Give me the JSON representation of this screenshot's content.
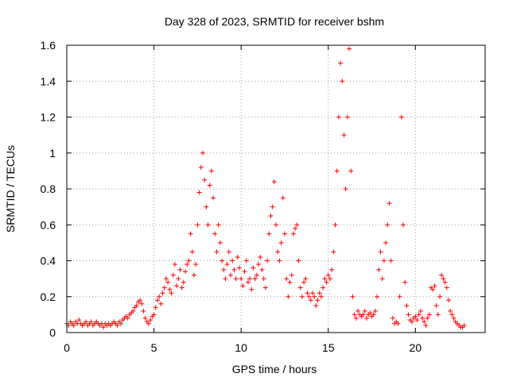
{
  "chart_data": {
    "type": "scatter",
    "title": "Day 328 of 2023, SRMTID for receiver bshm",
    "xlabel": "GPS time / hours",
    "ylabel": "SRMTID / TECUs",
    "xlim": [
      0,
      24
    ],
    "ylim": [
      0,
      1.6
    ],
    "grid": true,
    "marker": "plus",
    "color": "#ff0000",
    "x_ticks": [
      0,
      5,
      10,
      15,
      20
    ],
    "x_tick_labels": [
      "0",
      "5",
      "10",
      "15",
      "20"
    ],
    "y_ticks": [
      0,
      0.2,
      0.4,
      0.6,
      0.8,
      1.0,
      1.2,
      1.4,
      1.6
    ],
    "y_tick_labels": [
      "0",
      "0.2",
      "0.4",
      "0.6",
      "0.8",
      "1",
      "1.2",
      "1.4",
      "1.6"
    ],
    "series": [
      {
        "name": "SRMTID",
        "points": [
          [
            0.0,
            0.05
          ],
          [
            0.1,
            0.04
          ],
          [
            0.2,
            0.06
          ],
          [
            0.3,
            0.05
          ],
          [
            0.4,
            0.04
          ],
          [
            0.5,
            0.06
          ],
          [
            0.6,
            0.05
          ],
          [
            0.7,
            0.07
          ],
          [
            0.8,
            0.05
          ],
          [
            0.9,
            0.04
          ],
          [
            1.0,
            0.05
          ],
          [
            1.1,
            0.06
          ],
          [
            1.2,
            0.04
          ],
          [
            1.3,
            0.05
          ],
          [
            1.4,
            0.06
          ],
          [
            1.5,
            0.04
          ],
          [
            1.6,
            0.05
          ],
          [
            1.7,
            0.06
          ],
          [
            1.8,
            0.05
          ],
          [
            1.9,
            0.04
          ],
          [
            2.0,
            0.05
          ],
          [
            2.1,
            0.03
          ],
          [
            2.2,
            0.05
          ],
          [
            2.3,
            0.04
          ],
          [
            2.4,
            0.05
          ],
          [
            2.5,
            0.04
          ],
          [
            2.6,
            0.05
          ],
          [
            2.7,
            0.06
          ],
          [
            2.8,
            0.05
          ],
          [
            2.9,
            0.04
          ],
          [
            3.0,
            0.06
          ],
          [
            3.1,
            0.05
          ],
          [
            3.2,
            0.07
          ],
          [
            3.3,
            0.08
          ],
          [
            3.4,
            0.09
          ],
          [
            3.5,
            0.08
          ],
          [
            3.6,
            0.1
          ],
          [
            3.7,
            0.11
          ],
          [
            3.8,
            0.12
          ],
          [
            3.9,
            0.14
          ],
          [
            4.0,
            0.15
          ],
          [
            4.1,
            0.17
          ],
          [
            4.2,
            0.18
          ],
          [
            4.3,
            0.16
          ],
          [
            4.4,
            0.12
          ],
          [
            4.5,
            0.08
          ],
          [
            4.6,
            0.06
          ],
          [
            4.7,
            0.05
          ],
          [
            4.8,
            0.07
          ],
          [
            4.9,
            0.09
          ],
          [
            5.0,
            0.1
          ],
          [
            5.1,
            0.14
          ],
          [
            5.2,
            0.18
          ],
          [
            5.3,
            0.2
          ],
          [
            5.4,
            0.16
          ],
          [
            5.5,
            0.22
          ],
          [
            5.6,
            0.25
          ],
          [
            5.7,
            0.3
          ],
          [
            5.8,
            0.28
          ],
          [
            5.9,
            0.24
          ],
          [
            6.0,
            0.22
          ],
          [
            6.1,
            0.32
          ],
          [
            6.2,
            0.38
          ],
          [
            6.3,
            0.26
          ],
          [
            6.4,
            0.3
          ],
          [
            6.5,
            0.35
          ],
          [
            6.6,
            0.25
          ],
          [
            6.7,
            0.28
          ],
          [
            6.8,
            0.34
          ],
          [
            6.9,
            0.38
          ],
          [
            7.0,
            0.4
          ],
          [
            7.1,
            0.55
          ],
          [
            7.2,
            0.45
          ],
          [
            7.3,
            0.32
          ],
          [
            7.4,
            0.38
          ],
          [
            7.5,
            0.6
          ],
          [
            7.6,
            0.78
          ],
          [
            7.7,
            0.92
          ],
          [
            7.8,
            1.0
          ],
          [
            7.9,
            0.85
          ],
          [
            8.0,
            0.7
          ],
          [
            8.1,
            0.6
          ],
          [
            8.2,
            0.82
          ],
          [
            8.3,
            0.9
          ],
          [
            8.4,
            0.75
          ],
          [
            8.5,
            0.55
          ],
          [
            8.6,
            0.45
          ],
          [
            8.7,
            0.6
          ],
          [
            8.8,
            0.5
          ],
          [
            8.9,
            0.4
          ],
          [
            9.0,
            0.35
          ],
          [
            9.1,
            0.3
          ],
          [
            9.2,
            0.38
          ],
          [
            9.3,
            0.45
          ],
          [
            9.4,
            0.32
          ],
          [
            9.5,
            0.4
          ],
          [
            9.6,
            0.35
          ],
          [
            9.7,
            0.3
          ],
          [
            9.8,
            0.42
          ],
          [
            9.9,
            0.36
          ],
          [
            10.0,
            0.3
          ],
          [
            10.1,
            0.26
          ],
          [
            10.2,
            0.34
          ],
          [
            10.3,
            0.4
          ],
          [
            10.4,
            0.28
          ],
          [
            10.5,
            0.3
          ],
          [
            10.6,
            0.24
          ],
          [
            10.7,
            0.36
          ],
          [
            10.8,
            0.3
          ],
          [
            10.9,
            0.32
          ],
          [
            11.0,
            0.38
          ],
          [
            11.1,
            0.42
          ],
          [
            11.2,
            0.35
          ],
          [
            11.3,
            0.3
          ],
          [
            11.4,
            0.25
          ],
          [
            11.5,
            0.4
          ],
          [
            11.6,
            0.55
          ],
          [
            11.7,
            0.65
          ],
          [
            11.8,
            0.7
          ],
          [
            11.9,
            0.84
          ],
          [
            12.0,
            0.6
          ],
          [
            12.1,
            0.45
          ],
          [
            12.2,
            0.4
          ],
          [
            12.3,
            0.5
          ],
          [
            12.4,
            0.75
          ],
          [
            12.5,
            0.55
          ],
          [
            12.6,
            0.3
          ],
          [
            12.7,
            0.2
          ],
          [
            12.8,
            0.28
          ],
          [
            12.9,
            0.32
          ],
          [
            13.0,
            0.55
          ],
          [
            13.1,
            0.58
          ],
          [
            13.2,
            0.6
          ],
          [
            13.3,
            0.4
          ],
          [
            13.4,
            0.25
          ],
          [
            13.5,
            0.2
          ],
          [
            13.6,
            0.28
          ],
          [
            13.7,
            0.3
          ],
          [
            13.8,
            0.22
          ],
          [
            13.9,
            0.2
          ],
          [
            14.0,
            0.18
          ],
          [
            14.1,
            0.22
          ],
          [
            14.2,
            0.2
          ],
          [
            14.3,
            0.15
          ],
          [
            14.4,
            0.18
          ],
          [
            14.5,
            0.22
          ],
          [
            14.6,
            0.2
          ],
          [
            14.7,
            0.25
          ],
          [
            14.8,
            0.3
          ],
          [
            14.9,
            0.28
          ],
          [
            15.0,
            0.32
          ],
          [
            15.1,
            0.3
          ],
          [
            15.2,
            0.35
          ],
          [
            15.3,
            0.45
          ],
          [
            15.4,
            0.6
          ],
          [
            15.5,
            0.9
          ],
          [
            15.6,
            1.2
          ],
          [
            15.7,
            1.5
          ],
          [
            15.8,
            1.4
          ],
          [
            15.9,
            1.1
          ],
          [
            16.0,
            0.8
          ],
          [
            16.1,
            1.2
          ],
          [
            16.2,
            1.58
          ],
          [
            16.3,
            0.9
          ],
          [
            16.4,
            0.2
          ],
          [
            16.5,
            0.1
          ],
          [
            16.6,
            0.08
          ],
          [
            16.7,
            0.12
          ],
          [
            16.8,
            0.1
          ],
          [
            16.9,
            0.09
          ],
          [
            17.0,
            0.1
          ],
          [
            17.1,
            0.12
          ],
          [
            17.2,
            0.08
          ],
          [
            17.3,
            0.1
          ],
          [
            17.4,
            0.11
          ],
          [
            17.5,
            0.09
          ],
          [
            17.6,
            0.1
          ],
          [
            17.7,
            0.12
          ],
          [
            17.8,
            0.2
          ],
          [
            17.9,
            0.35
          ],
          [
            18.0,
            0.45
          ],
          [
            18.1,
            0.3
          ],
          [
            18.2,
            0.4
          ],
          [
            18.3,
            0.5
          ],
          [
            18.4,
            0.6
          ],
          [
            18.5,
            0.72
          ],
          [
            18.6,
            0.4
          ],
          [
            18.7,
            0.08
          ],
          [
            18.8,
            0.05
          ],
          [
            18.9,
            0.06
          ],
          [
            19.0,
            0.05
          ],
          [
            19.1,
            0.2
          ],
          [
            19.2,
            1.2
          ],
          [
            19.3,
            0.6
          ],
          [
            19.4,
            0.28
          ],
          [
            19.5,
            0.15
          ],
          [
            19.6,
            0.1
          ],
          [
            19.7,
            0.07
          ],
          [
            19.8,
            0.06
          ],
          [
            19.9,
            0.08
          ],
          [
            20.0,
            0.09
          ],
          [
            20.1,
            0.07
          ],
          [
            20.2,
            0.1
          ],
          [
            20.3,
            0.12
          ],
          [
            20.4,
            0.08
          ],
          [
            20.5,
            0.06
          ],
          [
            20.6,
            0.04
          ],
          [
            20.7,
            0.08
          ],
          [
            20.8,
            0.1
          ],
          [
            20.9,
            0.25
          ],
          [
            21.0,
            0.24
          ],
          [
            21.1,
            0.26
          ],
          [
            21.2,
            0.15
          ],
          [
            21.3,
            0.1
          ],
          [
            21.4,
            0.2
          ],
          [
            21.5,
            0.32
          ],
          [
            21.6,
            0.3
          ],
          [
            21.7,
            0.28
          ],
          [
            21.8,
            0.25
          ],
          [
            21.9,
            0.18
          ],
          [
            22.0,
            0.12
          ],
          [
            22.1,
            0.1
          ],
          [
            22.2,
            0.08
          ],
          [
            22.3,
            0.06
          ],
          [
            22.4,
            0.05
          ],
          [
            22.5,
            0.04
          ],
          [
            22.6,
            0.03
          ],
          [
            22.7,
            0.03
          ],
          [
            22.8,
            0.04
          ]
        ]
      }
    ]
  }
}
